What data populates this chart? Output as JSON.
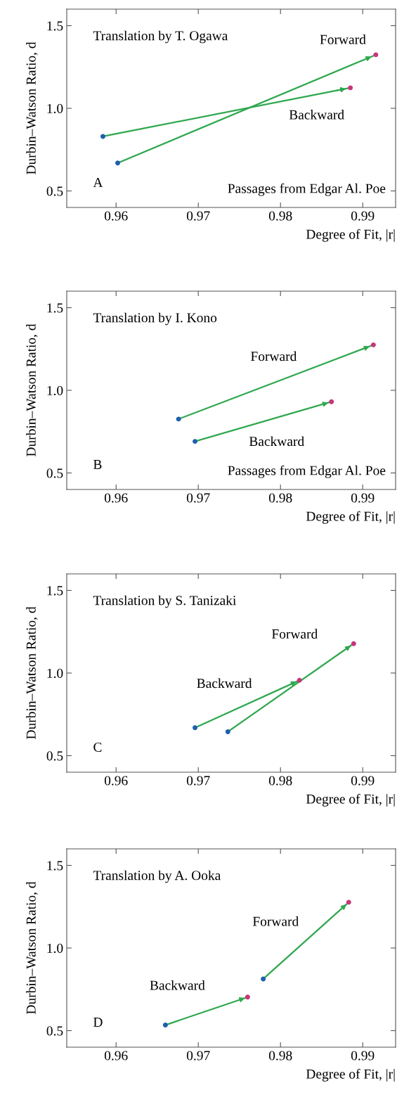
{
  "chart_data": [
    {
      "type": "line",
      "title": "Translation by T. Ogawa",
      "xlabel": "Degree of Fit, |r|",
      "ylabel": "Durbin–Watson Ratio, d",
      "xlim": [
        0.954,
        0.994
      ],
      "ylim": [
        0.4,
        1.6
      ],
      "xticks": [
        {
          "value": 0.96,
          "label": "0.96"
        },
        {
          "value": 0.97,
          "label": "0.97"
        },
        {
          "value": 0.98,
          "label": "0.98"
        },
        {
          "value": 0.99,
          "label": "0.99"
        }
      ],
      "yticks": [
        {
          "value": 0.5,
          "label": "0.5"
        },
        {
          "value": 1.0,
          "label": "1.0"
        },
        {
          "value": 1.5,
          "label": "1.5"
        }
      ],
      "marker": "circle",
      "grid": false,
      "series": [
        {
          "name": "Forward",
          "color": "#2fa84f",
          "colors": [
            "#1f5fae",
            "#c8357a"
          ],
          "x": [
            0.9602,
            0.9916
          ],
          "values": [
            0.669,
            1.324
          ]
        },
        {
          "name": "Backward",
          "color": "#2fa84f",
          "colors": [
            "#1f5fae",
            "#c8357a"
          ],
          "x": [
            0.9584,
            0.9885
          ],
          "values": [
            0.83,
            1.124
          ]
        }
      ],
      "annotations": [
        "A",
        "Passages from Edgar Al. Poe"
      ]
    },
    {
      "type": "line",
      "title": "Translation by I. Kono",
      "xlabel": "Degree of Fit, |r|",
      "ylabel": "Durbin–Watson Ratio, d",
      "xlim": [
        0.954,
        0.994
      ],
      "ylim": [
        0.4,
        1.6
      ],
      "xticks": [
        {
          "value": 0.96,
          "label": "0.96"
        },
        {
          "value": 0.97,
          "label": "0.97"
        },
        {
          "value": 0.98,
          "label": "0.98"
        },
        {
          "value": 0.99,
          "label": "0.99"
        }
      ],
      "yticks": [
        {
          "value": 0.5,
          "label": "0.5"
        },
        {
          "value": 1.0,
          "label": "1.0"
        },
        {
          "value": 1.5,
          "label": "1.5"
        }
      ],
      "marker": "circle",
      "grid": false,
      "series": [
        {
          "name": "Forward",
          "color": "#2fa84f",
          "colors": [
            "#1f5fae",
            "#c8357a"
          ],
          "x": [
            0.9676,
            0.9913
          ],
          "values": [
            0.826,
            1.275
          ]
        },
        {
          "name": "Backward",
          "color": "#2fa84f",
          "colors": [
            "#1f5fae",
            "#c8357a"
          ],
          "x": [
            0.9696,
            0.9862
          ],
          "values": [
            0.691,
            0.931
          ]
        }
      ],
      "annotations": [
        "B",
        "Passages from Edgar Al. Poe"
      ]
    },
    {
      "type": "line",
      "title": "Translation by S. Tanizaki",
      "xlabel": "Degree of Fit, |r|",
      "ylabel": "Durbin–Watson Ratio, d",
      "xlim": [
        0.954,
        0.994
      ],
      "ylim": [
        0.4,
        1.6
      ],
      "xticks": [
        {
          "value": 0.96,
          "label": "0.96"
        },
        {
          "value": 0.97,
          "label": "0.97"
        },
        {
          "value": 0.98,
          "label": "0.98"
        },
        {
          "value": 0.99,
          "label": "0.99"
        }
      ],
      "yticks": [
        {
          "value": 0.5,
          "label": "0.5"
        },
        {
          "value": 1.0,
          "label": "1.0"
        },
        {
          "value": 1.5,
          "label": "1.5"
        }
      ],
      "marker": "circle",
      "grid": false,
      "series": [
        {
          "name": "Forward",
          "color": "#2fa84f",
          "colors": [
            "#1f5fae",
            "#c8357a"
          ],
          "x": [
            0.9736,
            0.9889
          ],
          "values": [
            0.645,
            1.178
          ]
        },
        {
          "name": "Backward",
          "color": "#2fa84f",
          "colors": [
            "#1f5fae",
            "#c8357a"
          ],
          "x": [
            0.9696,
            0.9823
          ],
          "values": [
            0.669,
            0.956
          ]
        }
      ],
      "annotations": [
        "C"
      ]
    },
    {
      "type": "line",
      "title": "Translation by A. Ooka",
      "xlabel": "Degree of Fit, |r|",
      "ylabel": "Durbin–Watson Ratio, d",
      "xlim": [
        0.954,
        0.994
      ],
      "ylim": [
        0.4,
        1.6
      ],
      "xticks": [
        {
          "value": 0.96,
          "label": "0.96"
        },
        {
          "value": 0.97,
          "label": "0.97"
        },
        {
          "value": 0.98,
          "label": "0.98"
        },
        {
          "value": 0.99,
          "label": "0.99"
        }
      ],
      "yticks": [
        {
          "value": 0.5,
          "label": "0.5"
        },
        {
          "value": 1.0,
          "label": "1.0"
        },
        {
          "value": 1.5,
          "label": "1.5"
        }
      ],
      "marker": "circle",
      "grid": false,
      "series": [
        {
          "name": "Forward",
          "color": "#2fa84f",
          "colors": [
            "#1f5fae",
            "#c8357a"
          ],
          "x": [
            0.9779,
            0.9883
          ],
          "values": [
            0.813,
            1.277
          ]
        },
        {
          "name": "Backward",
          "color": "#2fa84f",
          "colors": [
            "#1f5fae",
            "#c8357a"
          ],
          "x": [
            0.966,
            0.976
          ],
          "values": [
            0.534,
            0.703
          ]
        }
      ],
      "annotations": [
        "D"
      ]
    }
  ]
}
